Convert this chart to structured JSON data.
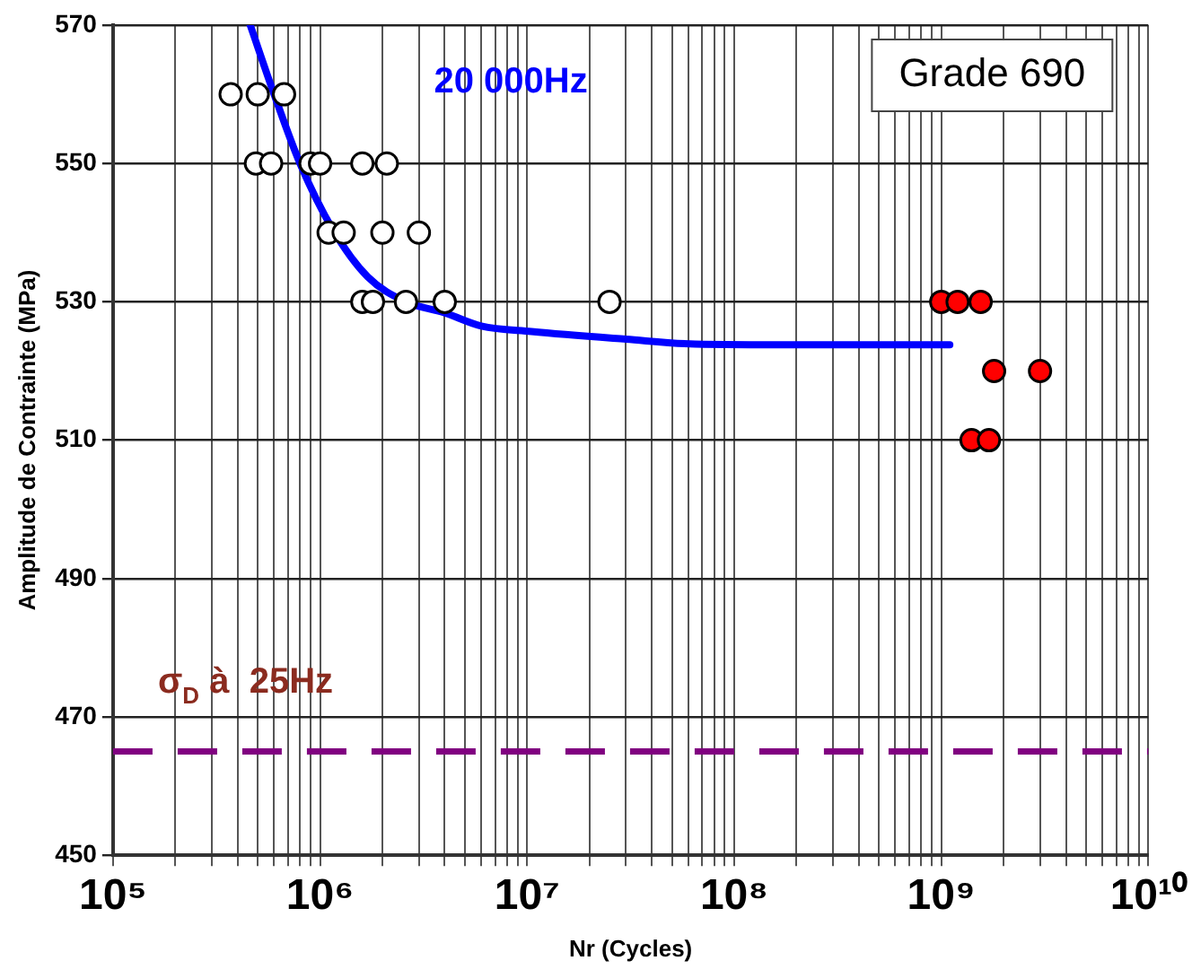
{
  "chart_data": {
    "type": "scatter",
    "xlabel": "Nr (Cycles)",
    "ylabel": "Amplitude de Contrainte (MPa)",
    "log": "x",
    "grid": true,
    "marker": "circle",
    "xlim": [
      100000,
      10000000000
    ],
    "ylim": [
      450,
      570
    ],
    "yticks": [
      450,
      470,
      490,
      510,
      530,
      550,
      570
    ],
    "xticks": [
      {
        "value": 100000,
        "label": "10⁵"
      },
      {
        "value": 200000,
        "label": null
      },
      {
        "value": 300000,
        "label": null
      },
      {
        "value": 400000,
        "label": null
      },
      {
        "value": 500000,
        "label": null
      },
      {
        "value": 600000,
        "label": null
      },
      {
        "value": 700000,
        "label": null
      },
      {
        "value": 800000,
        "label": null
      },
      {
        "value": 900000,
        "label": null
      },
      {
        "value": 1000000,
        "label": "10⁶"
      },
      {
        "value": 2000000,
        "label": null
      },
      {
        "value": 3000000,
        "label": null
      },
      {
        "value": 4000000,
        "label": null
      },
      {
        "value": 5000000,
        "label": null
      },
      {
        "value": 6000000,
        "label": null
      },
      {
        "value": 7000000,
        "label": null
      },
      {
        "value": 8000000,
        "label": null
      },
      {
        "value": 9000000,
        "label": null
      },
      {
        "value": 10000000,
        "label": "10⁷"
      },
      {
        "value": 20000000,
        "label": null
      },
      {
        "value": 30000000,
        "label": null
      },
      {
        "value": 40000000,
        "label": null
      },
      {
        "value": 50000000,
        "label": null
      },
      {
        "value": 60000000,
        "label": null
      },
      {
        "value": 70000000,
        "label": null
      },
      {
        "value": 80000000,
        "label": null
      },
      {
        "value": 90000000,
        "label": null
      },
      {
        "value": 100000000,
        "label": "10⁸"
      },
      {
        "value": 200000000,
        "label": null
      },
      {
        "value": 300000000,
        "label": null
      },
      {
        "value": 400000000,
        "label": null
      },
      {
        "value": 500000000,
        "label": null
      },
      {
        "value": 600000000,
        "label": null
      },
      {
        "value": 700000000,
        "label": null
      },
      {
        "value": 800000000,
        "label": null
      },
      {
        "value": 900000000,
        "label": null
      },
      {
        "value": 1000000000,
        "label": "10⁹"
      },
      {
        "value": 2000000000,
        "label": null
      },
      {
        "value": 3000000000,
        "label": null
      },
      {
        "value": 4000000000,
        "label": null
      },
      {
        "value": 5000000000,
        "label": null
      },
      {
        "value": 6000000000,
        "label": null
      },
      {
        "value": 7000000000,
        "label": null
      },
      {
        "value": 8000000000,
        "label": null
      },
      {
        "value": 9000000000,
        "label": null
      },
      {
        "value": 10000000000,
        "label": "10¹⁰"
      }
    ],
    "series": [
      {
        "color": "#ffffff",
        "x": [
          370000,
          500000,
          670000,
          490000,
          580000,
          900000,
          1000000,
          1600000,
          2100000,
          1100000,
          1300000,
          2000000,
          3000000,
          1600000,
          1800000,
          2600000,
          4000000,
          25000000
        ],
        "values": [
          560,
          560,
          560,
          550,
          550,
          550,
          550,
          550,
          550,
          540,
          540,
          540,
          540,
          530,
          530,
          530,
          530,
          530
        ]
      },
      {
        "color": "#ff0000",
        "x": [
          1000000000,
          1200000000,
          1550000000,
          1800000000,
          3000000000,
          1400000000,
          1700000000
        ],
        "values": [
          530,
          530,
          530,
          520,
          520,
          510,
          510
        ]
      },
      {
        "type": "line",
        "name": "20 000Hz",
        "color": "#0000ff",
        "marker": "none",
        "x": [
          460000,
          600000,
          800000,
          1150000,
          1700000,
          2600000,
          4000000,
          6000000,
          10500000,
          30000000,
          65000000,
          200000000,
          1100000000
        ],
        "values": [
          570,
          560,
          550,
          540.5,
          533.6,
          530,
          528.4,
          526.5,
          525.7,
          524.6,
          523.9,
          523.8,
          523.8
        ]
      }
    ],
    "ref_lines": [
      {
        "axis": "y",
        "value": 465,
        "label": "σ$_{D}$ à  25Hz",
        "color": "#800080",
        "line_style": "dashed"
      }
    ],
    "annotations": [
      "Grade 690"
    ]
  }
}
